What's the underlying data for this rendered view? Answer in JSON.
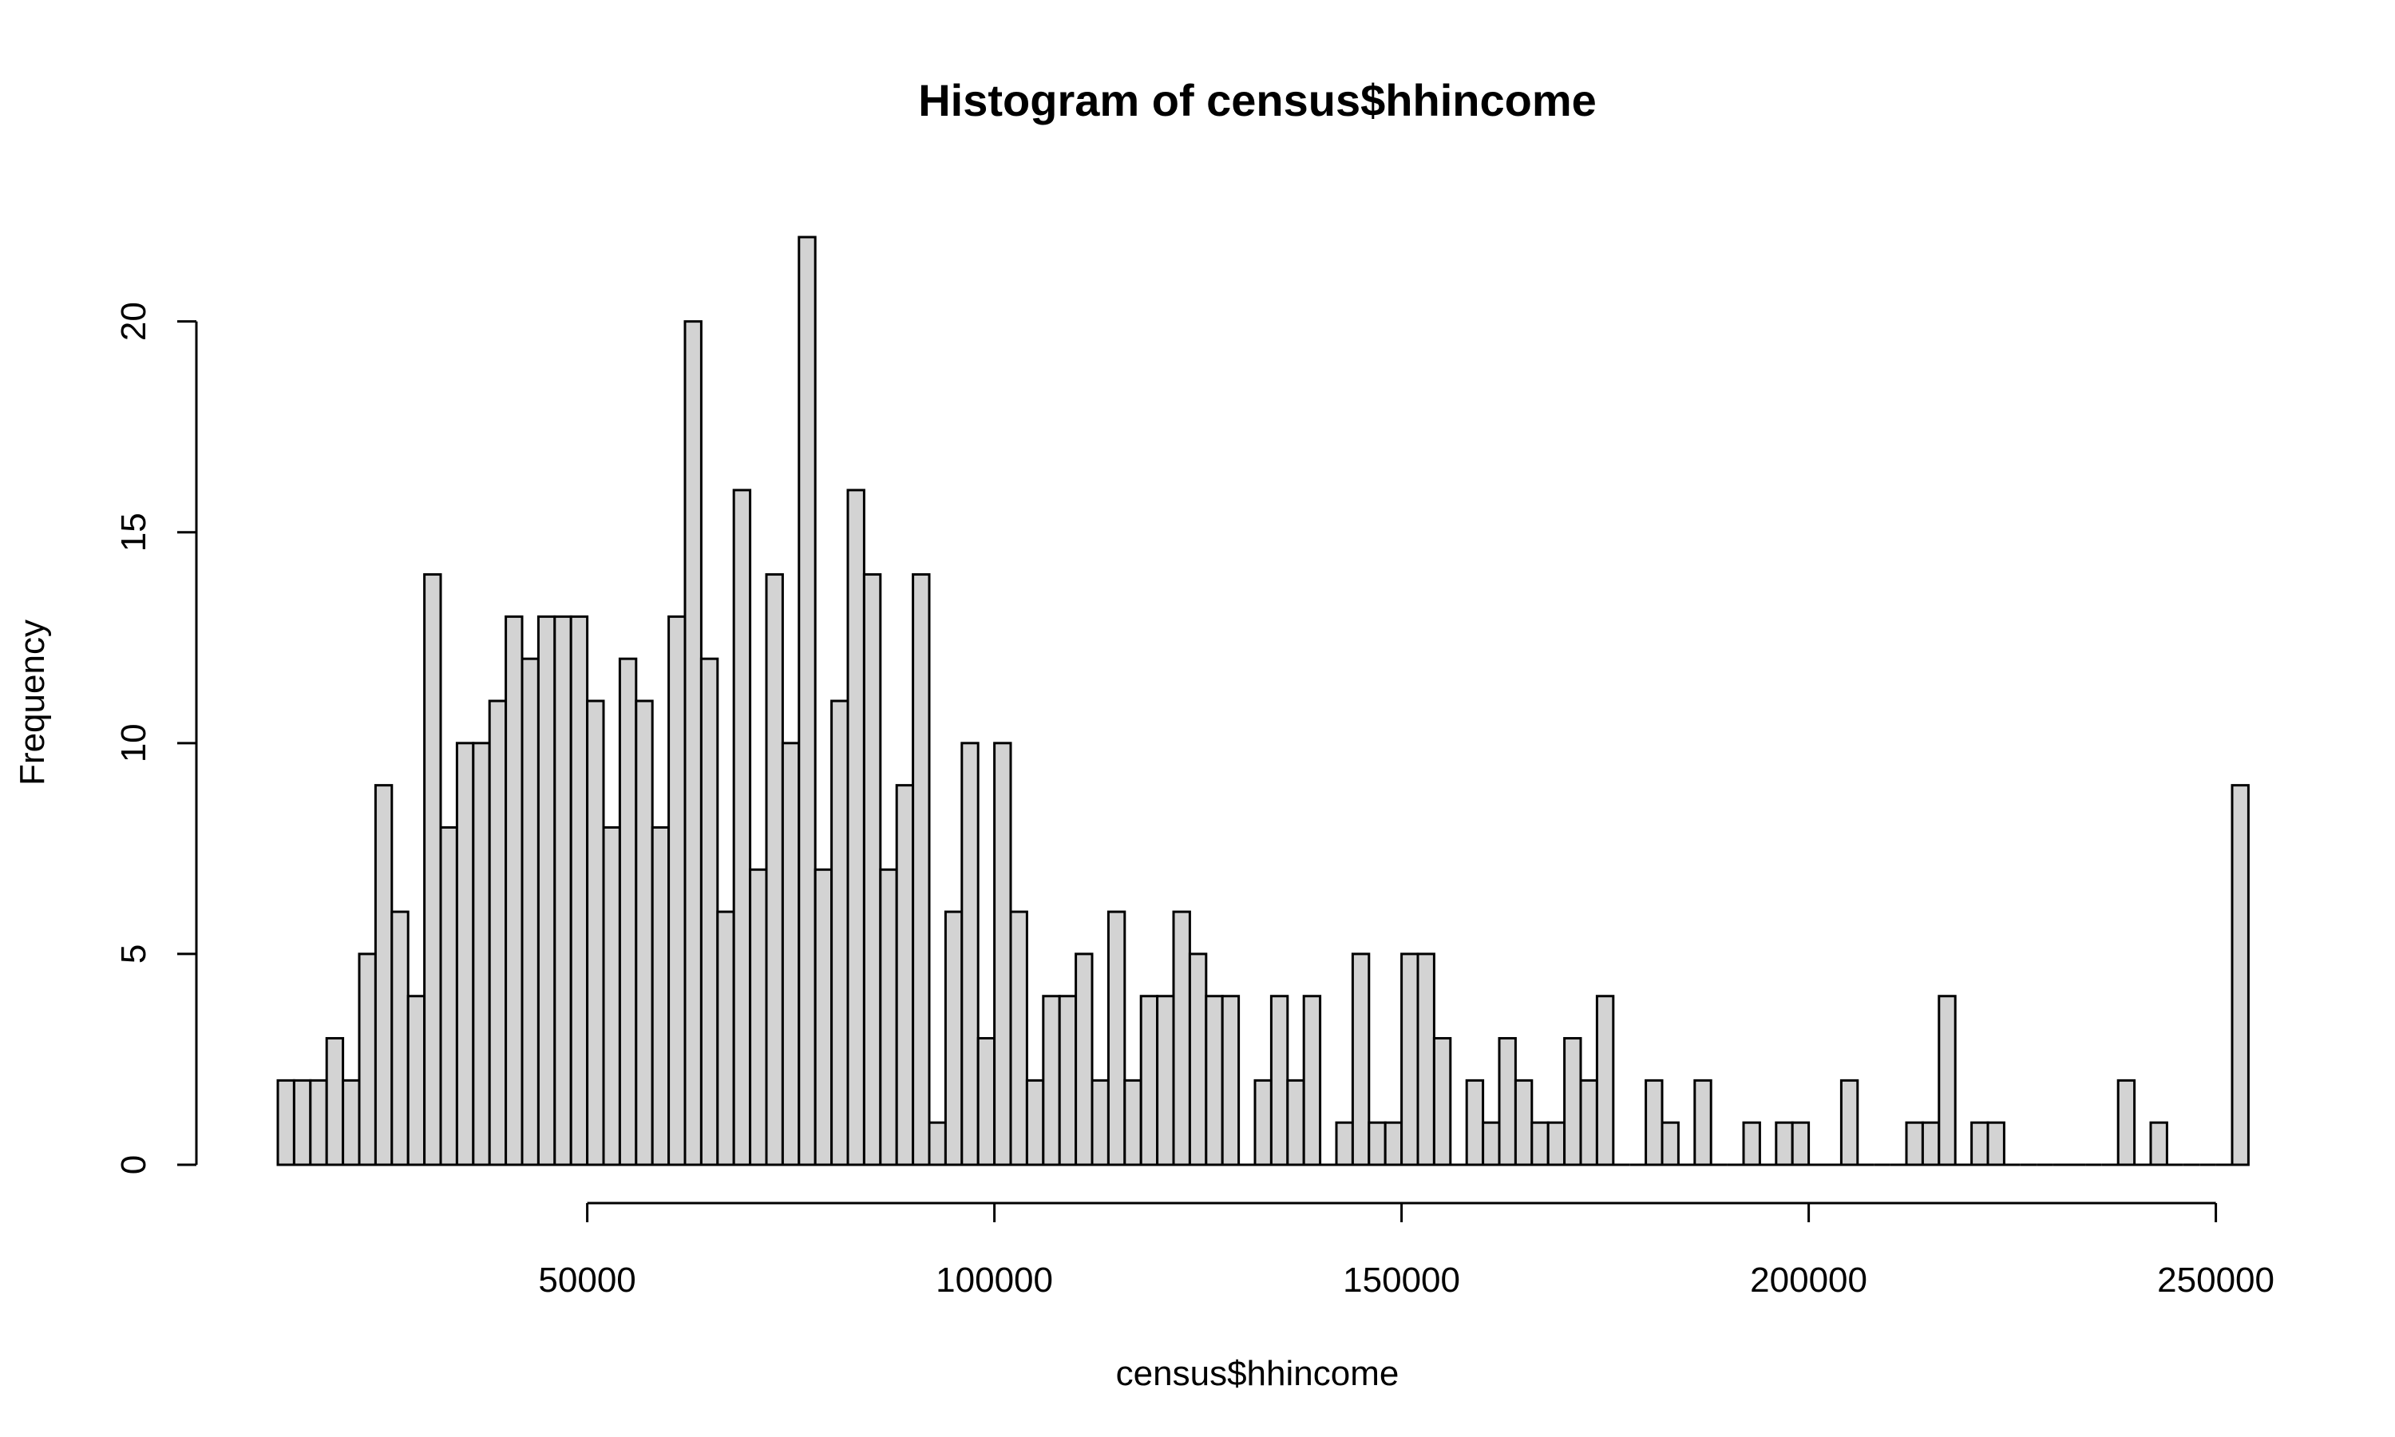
{
  "chart_data": {
    "type": "bar",
    "title": "Histogram of census$hhincome",
    "xlabel": "census$hhincome",
    "ylabel": "Frequency",
    "bin_start": 12000,
    "bin_width": 2000,
    "values": [
      2,
      2,
      2,
      3,
      2,
      5,
      9,
      6,
      4,
      14,
      8,
      10,
      10,
      11,
      13,
      12,
      13,
      13,
      13,
      11,
      8,
      12,
      11,
      8,
      13,
      20,
      12,
      6,
      16,
      7,
      14,
      10,
      22,
      7,
      11,
      16,
      14,
      7,
      9,
      14,
      1,
      6,
      10,
      3,
      10,
      6,
      2,
      4,
      4,
      5,
      2,
      6,
      2,
      4,
      4,
      6,
      5,
      4,
      4,
      0,
      2,
      4,
      2,
      4,
      0,
      1,
      5,
      1,
      1,
      5,
      5,
      3,
      0,
      2,
      1,
      3,
      2,
      1,
      1,
      3,
      2,
      4,
      0,
      0,
      2,
      1,
      0,
      2,
      0,
      0,
      1,
      0,
      1,
      1,
      0,
      0,
      2,
      0,
      0,
      0,
      1,
      1,
      4,
      0,
      1,
      1,
      0,
      0,
      0,
      0,
      0,
      0,
      0,
      2,
      0,
      1,
      0,
      0,
      0,
      0,
      9
    ],
    "xlim": [
      12000,
      252000
    ],
    "ylim": [
      0,
      22
    ],
    "x_ticks": [
      "50000",
      "100000",
      "150000",
      "200000",
      "250000"
    ],
    "x_tick_values": [
      50000,
      100000,
      150000,
      200000,
      250000
    ],
    "y_ticks": [
      "0",
      "5",
      "10",
      "15",
      "20"
    ],
    "y_tick_values": [
      0,
      5,
      10,
      15,
      20
    ],
    "grid": false,
    "colors": {
      "bar_fill": "#d3d3d3",
      "bar_stroke": "#000000"
    }
  }
}
